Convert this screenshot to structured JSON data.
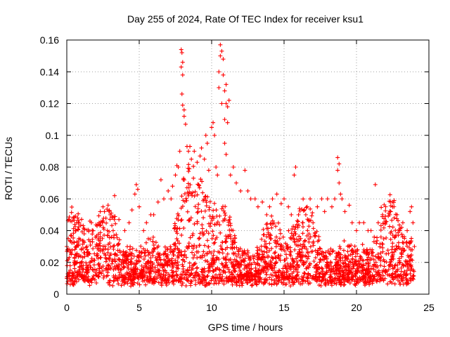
{
  "chart_data": {
    "type": "scatter",
    "title": "Day 255 of 2024, Rate Of TEC Index for receiver ksu1",
    "xlabel": "GPS time / hours",
    "ylabel": "ROTI / TECUs",
    "xlim": [
      0,
      25
    ],
    "ylim": [
      0,
      0.16
    ],
    "xticks": [
      0,
      5,
      10,
      15,
      20,
      25
    ],
    "xtick_labels": [
      "0",
      "5",
      "10",
      "15",
      "20",
      "25"
    ],
    "yticks": [
      0,
      0.02,
      0.04,
      0.06,
      0.08,
      0.1,
      0.12,
      0.14,
      0.16
    ],
    "ytick_labels": [
      "0",
      "0.02",
      "0.04",
      "0.06",
      "0.08",
      "0.1",
      "0.12",
      "0.14",
      "0.16"
    ],
    "grid": true,
    "marker": "+",
    "color": "#ff0000",
    "series": [
      {
        "points": [
          [
            0.0,
            0.03
          ],
          [
            0.1,
            0.035
          ],
          [
            0.1,
            0.022
          ],
          [
            0.2,
            0.028
          ],
          [
            0.3,
            0.025
          ],
          [
            0.5,
            0.02
          ],
          [
            0.5,
            0.012
          ],
          [
            1.0,
            0.018
          ],
          [
            1.2,
            0.038
          ],
          [
            1.4,
            0.028
          ],
          [
            1.6,
            0.046
          ],
          [
            1.7,
            0.045
          ],
          [
            2.0,
            0.03
          ],
          [
            2.2,
            0.035
          ],
          [
            2.5,
            0.055
          ],
          [
            2.6,
            0.052
          ],
          [
            2.8,
            0.04
          ],
          [
            3.0,
            0.05
          ],
          [
            3.2,
            0.04
          ],
          [
            3.3,
            0.062
          ],
          [
            3.6,
            0.047
          ],
          [
            4.0,
            0.04
          ],
          [
            4.3,
            0.045
          ],
          [
            4.5,
            0.053
          ],
          [
            4.7,
            0.063
          ],
          [
            4.8,
            0.069
          ],
          [
            4.9,
            0.066
          ],
          [
            5.0,
            0.055
          ],
          [
            5.3,
            0.04
          ],
          [
            5.5,
            0.045
          ],
          [
            5.8,
            0.05
          ],
          [
            6.0,
            0.05
          ],
          [
            6.3,
            0.058
          ],
          [
            6.5,
            0.072
          ],
          [
            6.7,
            0.06
          ],
          [
            7.0,
            0.065
          ],
          [
            7.2,
            0.06
          ],
          [
            7.3,
            0.068
          ],
          [
            7.5,
            0.075
          ],
          [
            7.6,
            0.081
          ],
          [
            7.7,
            0.08
          ],
          [
            7.8,
            0.09
          ],
          [
            7.9,
            0.154
          ],
          [
            7.95,
            0.152
          ],
          [
            8.0,
            0.146
          ],
          [
            7.9,
            0.143
          ],
          [
            8.0,
            0.138
          ],
          [
            7.95,
            0.126
          ],
          [
            8.1,
            0.116
          ],
          [
            8.0,
            0.119
          ],
          [
            8.1,
            0.112
          ],
          [
            8.2,
            0.107
          ],
          [
            8.3,
            0.093
          ],
          [
            8.4,
            0.09
          ],
          [
            8.5,
            0.093
          ],
          [
            8.6,
            0.085
          ],
          [
            8.8,
            0.09
          ],
          [
            9.0,
            0.083
          ],
          [
            9.2,
            0.087
          ],
          [
            9.3,
            0.092
          ],
          [
            9.5,
            0.085
          ],
          [
            9.6,
            0.1
          ],
          [
            9.7,
            0.095
          ],
          [
            9.8,
            0.078
          ],
          [
            10.0,
            0.105
          ],
          [
            10.1,
            0.108
          ],
          [
            10.2,
            0.1
          ],
          [
            10.3,
            0.08
          ],
          [
            10.4,
            0.075
          ],
          [
            10.5,
            0.14
          ],
          [
            10.5,
            0.13
          ],
          [
            10.6,
            0.157
          ],
          [
            10.6,
            0.15
          ],
          [
            10.7,
            0.153
          ],
          [
            10.7,
            0.12
          ],
          [
            10.8,
            0.148
          ],
          [
            10.8,
            0.138
          ],
          [
            10.9,
            0.128
          ],
          [
            10.9,
            0.11
          ],
          [
            11.0,
            0.132
          ],
          [
            11.0,
            0.12
          ],
          [
            11.1,
            0.118
          ],
          [
            11.1,
            0.108
          ],
          [
            11.2,
            0.122
          ],
          [
            10.9,
            0.095
          ],
          [
            11.0,
            0.088
          ],
          [
            11.3,
            0.075
          ],
          [
            11.5,
            0.08
          ],
          [
            11.7,
            0.07
          ],
          [
            12.0,
            0.065
          ],
          [
            12.3,
            0.078
          ],
          [
            12.5,
            0.065
          ],
          [
            12.7,
            0.06
          ],
          [
            13.0,
            0.06
          ],
          [
            13.2,
            0.055
          ],
          [
            13.5,
            0.058
          ],
          [
            13.8,
            0.05
          ],
          [
            14.0,
            0.055
          ],
          [
            14.2,
            0.06
          ],
          [
            14.5,
            0.063
          ],
          [
            14.8,
            0.057
          ],
          [
            15.0,
            0.06
          ],
          [
            15.3,
            0.055
          ],
          [
            15.5,
            0.05
          ],
          [
            15.8,
            0.08
          ],
          [
            15.7,
            0.075
          ],
          [
            16.0,
            0.05
          ],
          [
            16.3,
            0.045
          ],
          [
            16.5,
            0.05
          ],
          [
            16.8,
            0.06
          ],
          [
            17.0,
            0.045
          ],
          [
            17.3,
            0.055
          ],
          [
            17.6,
            0.06
          ],
          [
            17.8,
            0.052
          ],
          [
            18.0,
            0.06
          ],
          [
            18.3,
            0.055
          ],
          [
            18.5,
            0.06
          ],
          [
            18.7,
            0.086
          ],
          [
            18.7,
            0.078
          ],
          [
            18.8,
            0.082
          ],
          [
            18.8,
            0.07
          ],
          [
            18.9,
            0.063
          ],
          [
            19.0,
            0.06
          ],
          [
            19.2,
            0.052
          ],
          [
            19.5,
            0.056
          ],
          [
            19.7,
            0.045
          ],
          [
            20.0,
            0.04
          ],
          [
            20.2,
            0.045
          ],
          [
            20.5,
            0.045
          ],
          [
            20.8,
            0.04
          ],
          [
            21.0,
            0.04
          ],
          [
            21.3,
            0.069
          ],
          [
            21.5,
            0.045
          ],
          [
            21.8,
            0.05
          ],
          [
            22.0,
            0.045
          ],
          [
            22.3,
            0.05
          ],
          [
            22.5,
            0.055
          ],
          [
            22.6,
            0.059
          ],
          [
            22.8,
            0.05
          ],
          [
            23.0,
            0.04
          ],
          [
            23.2,
            0.045
          ],
          [
            23.5,
            0.04
          ],
          [
            23.7,
            0.052
          ],
          [
            23.8,
            0.055
          ],
          [
            23.9,
            0.045
          ],
          [
            24.0,
            0.03
          ]
        ]
      }
    ]
  }
}
